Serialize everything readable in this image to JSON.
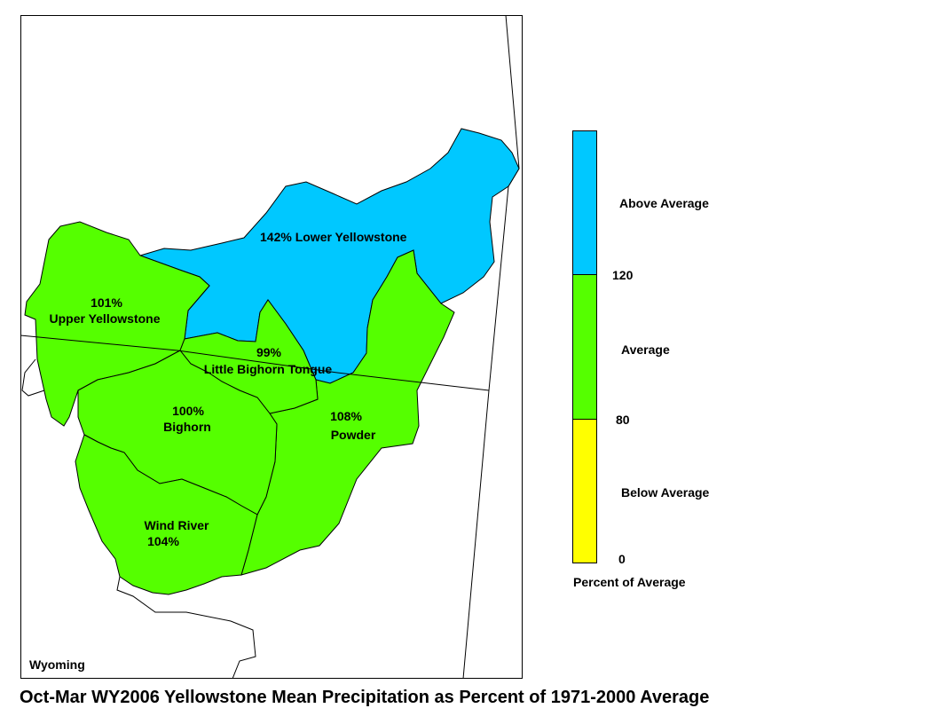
{
  "title": "Oct-Mar WY2006 Yellowstone Mean Precipitation as Percent of 1971-2000 Average",
  "state_label": "Wyoming",
  "legend": {
    "title": "Percent of Average",
    "classes": [
      {
        "label": "Above Average",
        "color": "#00c8ff"
      },
      {
        "label": "Average",
        "color": "#55ff00"
      },
      {
        "label": "Below Average",
        "color": "#ffff00"
      }
    ],
    "breaks": [
      "120",
      "80",
      "0"
    ]
  },
  "basins": [
    {
      "id": "lower-yellowstone",
      "name": "Lower Yellowstone",
      "percent": "142%",
      "color": "#00c8ff"
    },
    {
      "id": "upper-yellowstone",
      "name": "Upper Yellowstone",
      "percent": "101%",
      "color": "#55ff00"
    },
    {
      "id": "little-bighorn-tongue",
      "name": "Little Bighorn Tongue",
      "percent": "99%",
      "color": "#55ff00"
    },
    {
      "id": "bighorn",
      "name": "Bighorn",
      "percent": "100%",
      "color": "#55ff00"
    },
    {
      "id": "powder",
      "name": "Powder",
      "percent": "108%",
      "color": "#55ff00"
    },
    {
      "id": "wind-river",
      "name": "Wind River",
      "percent": "104%",
      "color": "#55ff00"
    }
  ]
}
